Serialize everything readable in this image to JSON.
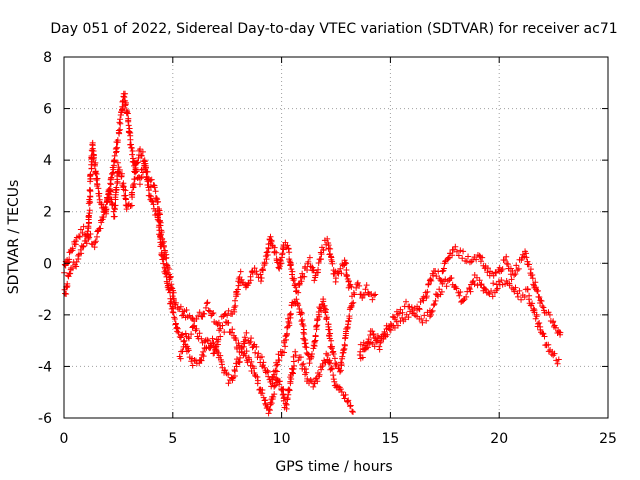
{
  "chart_data": {
    "type": "scatter",
    "title": "Day 051 of 2022, Sidereal Day-to-day VTEC variation (SDTVAR) for receiver ac71",
    "xlabel": "GPS time / hours",
    "ylabel": "SDTVAR / TECUs",
    "xlim": [
      0,
      25
    ],
    "ylim": [
      -6,
      8
    ],
    "xticks": [
      0,
      5,
      10,
      15,
      20,
      25
    ],
    "yticks": [
      -6,
      -4,
      -2,
      0,
      2,
      4,
      6,
      8
    ],
    "grid": true,
    "marker": "+",
    "series": [
      {
        "name": "SDTVAR",
        "color": "#ff0000",
        "tracks": [
          {
            "x": [
              0.0,
              0.3,
              0.6,
              0.9,
              1.1,
              1.4,
              1.7,
              2.0,
              2.2,
              2.4,
              2.6,
              2.75,
              2.9,
              3.1,
              3.3,
              3.5,
              3.7,
              3.9,
              4.1,
              4.3,
              4.5,
              4.7,
              4.9,
              5.1,
              5.3,
              5.5,
              5.7,
              6.0,
              6.3,
              6.6,
              6.9,
              7.2,
              7.5,
              7.8,
              8.1,
              8.4,
              8.7,
              9.0,
              9.3,
              9.5,
              9.7,
              9.9,
              10.1,
              10.3,
              10.5,
              10.7,
              10.9,
              11.1,
              11.3,
              11.5,
              11.7,
              11.9,
              12.1,
              12.3,
              12.5,
              12.7,
              12.9,
              13.1,
              13.3,
              13.5,
              13.7,
              13.9,
              14.1,
              14.4
            ],
            "y": [
              -0.3,
              0.4,
              1.0,
              1.3,
              1.1,
              0.8,
              1.5,
              2.4,
              3.4,
              4.4,
              5.5,
              6.6,
              5.8,
              4.4,
              3.6,
              3.2,
              3.8,
              3.3,
              3.0,
              2.4,
              1.1,
              0.2,
              -0.7,
              -1.6,
              -1.8,
              -2.0,
              -1.9,
              -2.2,
              -2.0,
              -1.6,
              -2.1,
              -2.3,
              -2.0,
              -1.8,
              -0.5,
              -0.9,
              -0.3,
              -0.6,
              0.2,
              1.0,
              0.4,
              -0.2,
              0.8,
              0.5,
              -0.4,
              -1.1,
              -0.7,
              -0.2,
              0.1,
              -0.5,
              -0.1,
              0.6,
              0.9,
              0.1,
              -0.6,
              -0.3,
              0.1,
              -0.8,
              -1.2,
              -0.9,
              -1.2,
              -1.0,
              -1.3,
              -1.3
            ]
          },
          {
            "x": [
              0.0,
              0.3,
              0.6,
              0.9,
              1.1,
              1.3,
              1.6,
              1.9,
              2.1,
              2.3,
              2.5,
              2.7,
              2.9,
              3.1,
              3.3,
              3.5,
              3.7,
              3.9,
              4.1,
              4.3,
              4.5,
              4.7,
              4.9,
              5.1,
              5.3,
              5.5,
              5.7,
              6.0,
              6.3,
              6.6,
              6.9,
              7.2,
              7.5,
              7.8,
              8.1,
              8.4,
              8.7,
              9.0,
              9.3,
              9.5,
              9.7,
              9.9,
              10.1,
              10.3,
              10.5,
              10.7,
              10.9,
              11.1,
              11.3,
              11.5,
              11.7,
              11.9,
              12.1,
              12.3,
              12.5,
              12.7,
              12.9,
              13.1,
              13.3
            ],
            "y": [
              -1.3,
              -0.3,
              0.1,
              0.7,
              1.0,
              4.6,
              2.6,
              1.9,
              2.9,
              1.9,
              3.8,
              3.2,
              2.2,
              2.4,
              3.8,
              4.4,
              4.0,
              2.8,
              2.2,
              1.8,
              0.4,
              -0.6,
              -1.4,
              -2.2,
              -2.8,
              -2.9,
              -2.8,
              -2.5,
              -2.9,
              -3.1,
              -3.4,
              -2.6,
              -2.4,
              -2.8,
              -3.5,
              -2.8,
              -3.2,
              -3.6,
              -4.2,
              -4.7,
              -4.1,
              -3.6,
              -3.3,
              -2.4,
              -1.6,
              -1.4,
              -2.0,
              -3.3,
              -3.8,
              -3.2,
              -2.0,
              -1.4,
              -2.2,
              -3.3,
              -3.9,
              -4.2,
              -3.1,
              -2.0,
              -1.3
            ]
          },
          {
            "x": [
              5.3,
              5.6,
              5.9,
              6.2,
              6.5,
              6.8,
              7.1,
              7.4,
              7.7,
              8.0,
              8.3,
              8.6,
              8.9,
              9.2,
              9.4,
              9.6,
              9.8,
              10.0,
              10.2,
              10.4,
              10.6,
              10.9,
              11.2,
              11.5,
              11.8,
              12.1,
              12.4,
              12.7,
              13.0,
              13.3
            ],
            "y": [
              -3.6,
              -3.2,
              -3.8,
              -4.0,
              -3.3,
              -3.0,
              -3.6,
              -4.3,
              -4.6,
              -3.8,
              -3.4,
              -4.0,
              -4.6,
              -5.3,
              -5.8,
              -5.1,
              -4.3,
              -4.8,
              -5.6,
              -4.6,
              -3.6,
              -3.8,
              -4.5,
              -4.8,
              -4.2,
              -3.6,
              -4.5,
              -5.0,
              -5.3,
              -5.8
            ]
          },
          {
            "x": [
              13.6,
              13.9,
              14.2,
              14.5,
              14.8,
              15.1,
              15.4,
              15.8,
              16.2,
              16.6,
              17.0,
              17.3,
              17.6,
              17.9,
              18.2,
              18.5,
              18.8,
              19.1,
              19.4,
              19.7,
              20.0,
              20.3,
              20.6,
              20.9,
              21.2,
              21.5,
              21.8,
              22.1,
              22.4,
              22.7,
              22.85
            ],
            "y": [
              -3.3,
              -3.0,
              -2.6,
              -3.2,
              -2.6,
              -2.2,
              -1.9,
              -1.6,
              -1.9,
              -1.3,
              -0.3,
              -0.6,
              0.1,
              0.6,
              0.4,
              0.2,
              0.1,
              0.3,
              -0.2,
              -0.6,
              -0.3,
              0.1,
              -0.4,
              -0.1,
              0.3,
              -0.5,
              -1.3,
              -1.9,
              -2.1,
              -2.6,
              -2.6
            ]
          },
          {
            "x": [
              13.6,
              13.9,
              14.2,
              14.5,
              14.8,
              15.2,
              15.6,
              16.0,
              16.4,
              16.8,
              17.1,
              17.4,
              17.7,
              18.0,
              18.3,
              18.6,
              18.9,
              19.2,
              19.5,
              19.8,
              20.1,
              20.4,
              20.7,
              21.0,
              21.3,
              21.6,
              21.9,
              22.2,
              22.5,
              22.8
            ],
            "y": [
              -3.6,
              -3.3,
              -3.1,
              -2.9,
              -2.8,
              -2.5,
              -2.2,
              -2.0,
              -2.2,
              -2.0,
              -1.3,
              -0.9,
              -0.6,
              -1.0,
              -1.4,
              -1.1,
              -0.6,
              -0.9,
              -1.3,
              -1.1,
              -0.7,
              -0.6,
              -1.0,
              -1.3,
              -1.1,
              -1.9,
              -2.6,
              -3.2,
              -3.6,
              -3.9
            ]
          }
        ]
      }
    ]
  }
}
